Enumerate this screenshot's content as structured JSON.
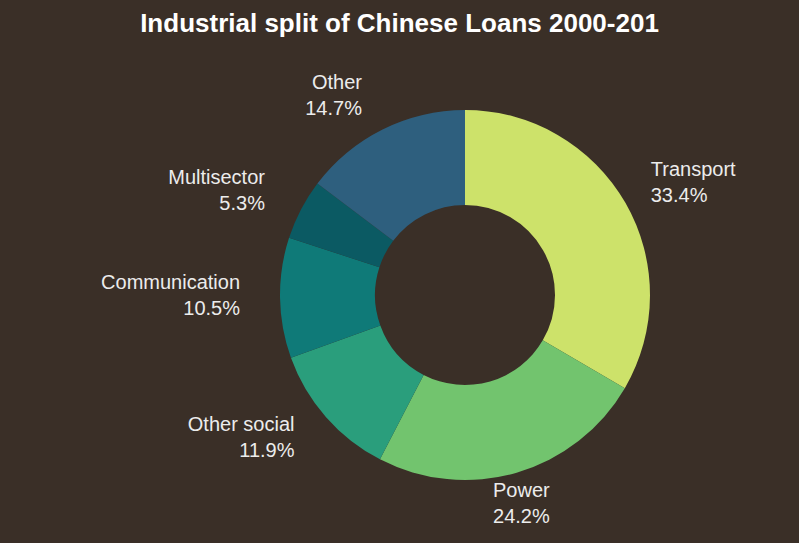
{
  "chart_data": {
    "type": "pie",
    "title": "Industrial split of Chinese Loans 2000-201",
    "categories": [
      "Transport",
      "Power",
      "Other social",
      "Communication",
      "Multisector",
      "Other"
    ],
    "values": [
      33.4,
      24.2,
      11.9,
      10.5,
      5.3,
      14.7
    ],
    "value_labels": [
      "33.4%",
      "24.2%",
      "11.9%",
      "10.5%",
      "5.3%",
      "14.7%"
    ],
    "colors": [
      "#cde26a",
      "#72c46e",
      "#2a9e7c",
      "#0f7a78",
      "#0b5a63",
      "#2e5f7e"
    ],
    "data_labels": true
  }
}
